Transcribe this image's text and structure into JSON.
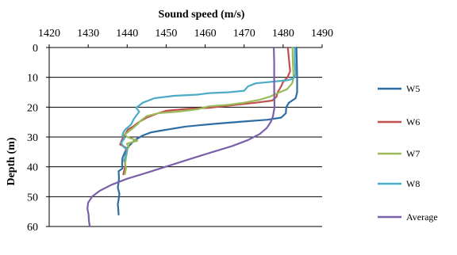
{
  "chart_data": {
    "type": "line",
    "title": "",
    "xlabel": "Sound speed (m/s)",
    "ylabel": "Depth (m)",
    "xlim": [
      1420,
      1490
    ],
    "ylim": [
      0,
      60
    ],
    "y_inverted": true,
    "x_axis_position": "top",
    "x_ticks": [
      "1420",
      "1430",
      "1440",
      "1450",
      "1460",
      "1470",
      "1480",
      "1490"
    ],
    "y_ticks": [
      "0",
      "10",
      "20",
      "30",
      "40",
      "50",
      "60"
    ],
    "grid": "horizontal",
    "legend_position": "right",
    "series": [
      {
        "name": "W5",
        "color": "#2e6da4",
        "points": [
          [
            1483.4,
            0
          ],
          [
            1483.5,
            5
          ],
          [
            1483.6,
            10
          ],
          [
            1483.6,
            15
          ],
          [
            1483.2,
            17
          ],
          [
            1481.5,
            18.5
          ],
          [
            1480.8,
            20
          ],
          [
            1480.7,
            22
          ],
          [
            1479.5,
            23.5
          ],
          [
            1476,
            24.2
          ],
          [
            1470,
            24.8
          ],
          [
            1463,
            25.5
          ],
          [
            1455,
            26.5
          ],
          [
            1448,
            28
          ],
          [
            1446,
            28.5
          ],
          [
            1444,
            29.5
          ],
          [
            1442,
            31
          ],
          [
            1441.2,
            32
          ],
          [
            1440.5,
            33
          ],
          [
            1439.8,
            34
          ],
          [
            1439.3,
            35.5
          ],
          [
            1438.8,
            37
          ],
          [
            1438.7,
            39
          ],
          [
            1438.8,
            40.5
          ],
          [
            1437.8,
            41.5
          ],
          [
            1437.9,
            44
          ],
          [
            1437.6,
            47
          ],
          [
            1438,
            49
          ],
          [
            1437.8,
            51
          ],
          [
            1437.6,
            52.5
          ],
          [
            1437.7,
            54
          ],
          [
            1437.8,
            56
          ]
        ]
      },
      {
        "name": "W6",
        "color": "#c0504d",
        "points": [
          [
            1481.2,
            0
          ],
          [
            1481.5,
            4
          ],
          [
            1481.8,
            8
          ],
          [
            1481.1,
            10
          ],
          [
            1480,
            11.5
          ],
          [
            1479.5,
            13
          ],
          [
            1478.6,
            15
          ],
          [
            1478.3,
            16.5
          ],
          [
            1477.2,
            17.8
          ],
          [
            1473,
            18.5
          ],
          [
            1468,
            19.2
          ],
          [
            1461,
            20.2
          ],
          [
            1455,
            20.6
          ],
          [
            1450,
            21.2
          ],
          [
            1448,
            22
          ],
          [
            1445,
            23.5
          ],
          [
            1443,
            25
          ],
          [
            1441.5,
            26.5
          ],
          [
            1440.2,
            27.5
          ],
          [
            1439.5,
            29
          ],
          [
            1438.8,
            30.5
          ],
          [
            1438.5,
            31.5
          ],
          [
            1438.2,
            32.5
          ],
          [
            1439.6,
            33.5
          ],
          [
            1439.8,
            35
          ],
          [
            1439.4,
            37.5
          ],
          [
            1439.5,
            40
          ],
          [
            1439,
            42.5
          ]
        ]
      },
      {
        "name": "W7",
        "color": "#9bbb59",
        "points": [
          [
            1482.4,
            0
          ],
          [
            1482.5,
            5
          ],
          [
            1482.7,
            10
          ],
          [
            1482.3,
            12
          ],
          [
            1481,
            14
          ],
          [
            1478.2,
            15.5
          ],
          [
            1476.5,
            16.5
          ],
          [
            1474,
            17.5
          ],
          [
            1470,
            18.5
          ],
          [
            1466,
            19.2
          ],
          [
            1461,
            19.7
          ],
          [
            1458,
            20.7
          ],
          [
            1453,
            21.5
          ],
          [
            1448,
            22
          ],
          [
            1445,
            23
          ],
          [
            1443.5,
            24.5
          ],
          [
            1442.8,
            25.5
          ],
          [
            1441.5,
            27
          ],
          [
            1440.5,
            28
          ],
          [
            1439.4,
            29.2
          ],
          [
            1440,
            30
          ],
          [
            1441.5,
            30.7
          ],
          [
            1442.6,
            31.3
          ],
          [
            1441,
            31.8
          ],
          [
            1439.9,
            32.3
          ],
          [
            1440.5,
            33.2
          ],
          [
            1440,
            34.2
          ],
          [
            1439.9,
            35.5
          ],
          [
            1439.7,
            37
          ],
          [
            1439.5,
            39
          ],
          [
            1439.7,
            40.5
          ],
          [
            1439.4,
            42.5
          ]
        ]
      },
      {
        "name": "W8",
        "color": "#4bacc6",
        "points": [
          [
            1483,
            0
          ],
          [
            1483,
            5
          ],
          [
            1483.2,
            9
          ],
          [
            1482.5,
            10.5
          ],
          [
            1481,
            11
          ],
          [
            1477,
            11.5
          ],
          [
            1473,
            12
          ],
          [
            1471,
            13
          ],
          [
            1470,
            14.5
          ],
          [
            1466,
            15
          ],
          [
            1461,
            15.3
          ],
          [
            1458,
            15.8
          ],
          [
            1452,
            16.2
          ],
          [
            1447,
            17
          ],
          [
            1444,
            18.5
          ],
          [
            1442.3,
            20.2
          ],
          [
            1443.1,
            21.5
          ],
          [
            1442.5,
            22.5
          ],
          [
            1441.7,
            24
          ],
          [
            1441,
            25.8
          ],
          [
            1440.4,
            26.5
          ],
          [
            1439.5,
            27.5
          ],
          [
            1439,
            28.5
          ],
          [
            1438.8,
            29.5
          ],
          [
            1439.3,
            30.5
          ],
          [
            1438.8,
            31.3
          ],
          [
            1438.5,
            32
          ],
          [
            1439,
            33.2
          ],
          [
            1440,
            34.2
          ],
          [
            1439.7,
            36
          ],
          [
            1439.2,
            38
          ]
        ]
      },
      {
        "name": "Average",
        "color": "#7960a8",
        "points": [
          [
            1477.6,
            0
          ],
          [
            1477.7,
            5
          ],
          [
            1477.7,
            10
          ],
          [
            1477.7,
            15
          ],
          [
            1477.8,
            20
          ],
          [
            1477.4,
            23
          ],
          [
            1476.8,
            25
          ],
          [
            1475.8,
            27
          ],
          [
            1474,
            29
          ],
          [
            1471,
            31
          ],
          [
            1467,
            33
          ],
          [
            1462,
            35
          ],
          [
            1457,
            37
          ],
          [
            1451,
            39.5
          ],
          [
            1445,
            42
          ],
          [
            1440,
            44
          ],
          [
            1436,
            46
          ],
          [
            1433,
            48
          ],
          [
            1431,
            50
          ],
          [
            1430,
            52
          ],
          [
            1429.8,
            54
          ],
          [
            1430.1,
            56
          ],
          [
            1430.2,
            58
          ],
          [
            1430.4,
            60
          ]
        ]
      }
    ]
  }
}
